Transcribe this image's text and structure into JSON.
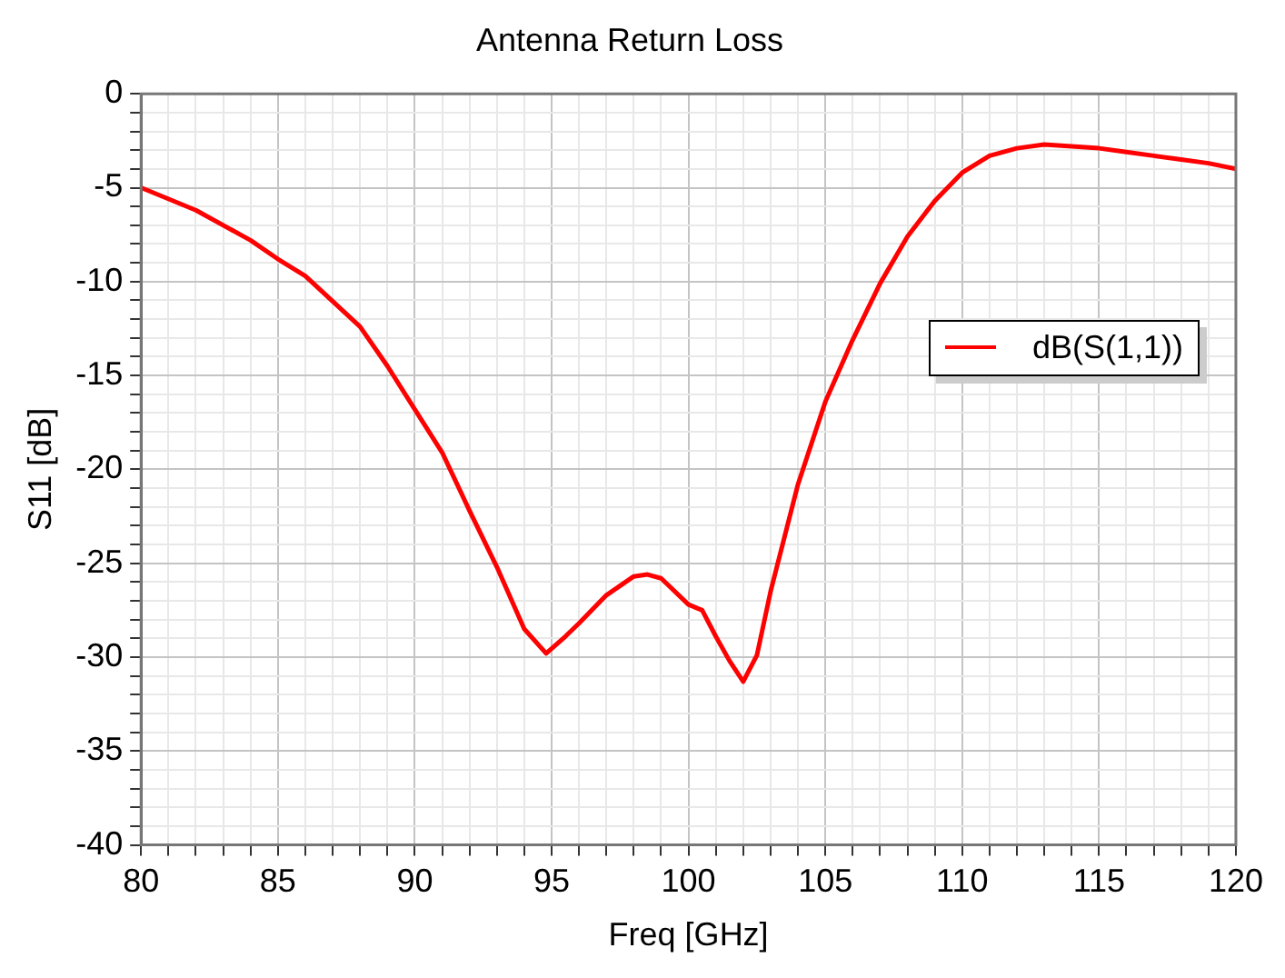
{
  "chart_data": {
    "type": "line",
    "title": "Antenna Return Loss",
    "xlabel": "Freq [GHz]",
    "ylabel": "S11 [dB]",
    "x": [
      80,
      82,
      84,
      85,
      86,
      88,
      89,
      90,
      91,
      92,
      93,
      94,
      94.8,
      95.5,
      96,
      97,
      98,
      98.5,
      99,
      100,
      100.5,
      101,
      101.5,
      102,
      102.5,
      103,
      104,
      105,
      106,
      107,
      108,
      109,
      110,
      111,
      112,
      113,
      114,
      115,
      116,
      117,
      118,
      119,
      120
    ],
    "series": [
      {
        "name": "dB(S(1,1))",
        "color": "#ff0000",
        "values": [
          -5.0,
          -6.2,
          -7.8,
          -8.8,
          -9.7,
          -12.4,
          -14.5,
          -16.8,
          -19.1,
          -22.2,
          -25.2,
          -28.5,
          -29.8,
          -28.9,
          -28.2,
          -26.7,
          -25.7,
          -25.6,
          -25.8,
          -27.2,
          -27.5,
          -28.9,
          -30.2,
          -31.3,
          -29.9,
          -26.5,
          -20.8,
          -16.4,
          -13.1,
          -10.1,
          -7.6,
          -5.7,
          -4.2,
          -3.3,
          -2.9,
          -2.7,
          -2.8,
          -2.9,
          -3.1,
          -3.3,
          -3.5,
          -3.7,
          -4.0
        ]
      }
    ],
    "xlim": [
      80,
      120
    ],
    "xticks": [
      80,
      {
        "value": 81,
        "label": null
      },
      {
        "value": 82,
        "label": null
      },
      {
        "value": 83,
        "label": null
      },
      {
        "value": 84,
        "label": null
      },
      85,
      {
        "value": 86,
        "label": null
      },
      {
        "value": 87,
        "label": null
      },
      {
        "value": 88,
        "label": null
      },
      {
        "value": 89,
        "label": null
      },
      90,
      {
        "value": 91,
        "label": null
      },
      {
        "value": 92,
        "label": null
      },
      {
        "value": 93,
        "label": null
      },
      {
        "value": 94,
        "label": null
      },
      95,
      {
        "value": 96,
        "label": null
      },
      {
        "value": 97,
        "label": null
      },
      {
        "value": 98,
        "label": null
      },
      {
        "value": 99,
        "label": null
      },
      100,
      {
        "value": 101,
        "label": null
      },
      {
        "value": 102,
        "label": null
      },
      {
        "value": 103,
        "label": null
      },
      {
        "value": 104,
        "label": null
      },
      105,
      {
        "value": 106,
        "label": null
      },
      {
        "value": 107,
        "label": null
      },
      {
        "value": 108,
        "label": null
      },
      {
        "value": 109,
        "label": null
      },
      110,
      {
        "value": 111,
        "label": null
      },
      {
        "value": 112,
        "label": null
      },
      {
        "value": 113,
        "label": null
      },
      {
        "value": 114,
        "label": null
      },
      115,
      {
        "value": 116,
        "label": null
      },
      {
        "value": 117,
        "label": null
      },
      {
        "value": 118,
        "label": null
      },
      {
        "value": 119,
        "label": null
      },
      120
    ],
    "ylim": [
      -40,
      0
    ],
    "yticks": [
      -40,
      {
        "value": -39,
        "label": null
      },
      {
        "value": -38,
        "label": null
      },
      {
        "value": -37,
        "label": null
      },
      {
        "value": -36,
        "label": null
      },
      -35,
      {
        "value": -34,
        "label": null
      },
      {
        "value": -33,
        "label": null
      },
      {
        "value": -32,
        "label": null
      },
      {
        "value": -31,
        "label": null
      },
      -30,
      {
        "value": -29,
        "label": null
      },
      {
        "value": -28,
        "label": null
      },
      {
        "value": -27,
        "label": null
      },
      {
        "value": -26,
        "label": null
      },
      -25,
      {
        "value": -24,
        "label": null
      },
      {
        "value": -23,
        "label": null
      },
      {
        "value": -22,
        "label": null
      },
      {
        "value": -21,
        "label": null
      },
      -20,
      {
        "value": -19,
        "label": null
      },
      {
        "value": -18,
        "label": null
      },
      {
        "value": -17,
        "label": null
      },
      {
        "value": -16,
        "label": null
      },
      -15,
      {
        "value": -14,
        "label": null
      },
      {
        "value": -13,
        "label": null
      },
      {
        "value": -12,
        "label": null
      },
      {
        "value": -11,
        "label": null
      },
      -10,
      {
        "value": -9,
        "label": null
      },
      {
        "value": -8,
        "label": null
      },
      {
        "value": -7,
        "label": null
      },
      {
        "value": -6,
        "label": null
      },
      -5,
      {
        "value": -4,
        "label": null
      },
      {
        "value": -3,
        "label": null
      },
      {
        "value": -2,
        "label": null
      },
      {
        "value": -1,
        "label": null
      },
      0
    ],
    "grid": true,
    "legend": "right",
    "marker": "none",
    "line_style": "solid"
  }
}
